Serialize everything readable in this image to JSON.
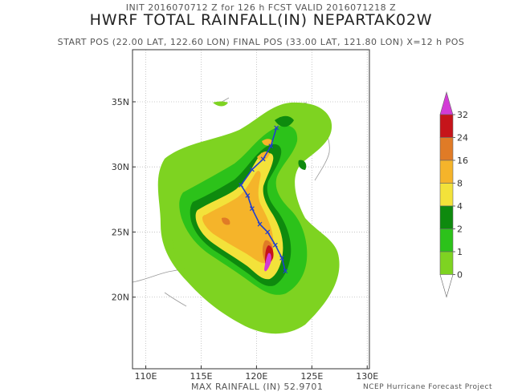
{
  "header": {
    "init_line": "INIT 2016070712 Z for 126 h FCST VALID 2016071218 Z",
    "title": "HWRF TOTAL RAINFALL(IN) NEPARTAK02W",
    "pos_line": "START POS (22.00 LAT, 122.60 LON)   FINAL POS (33.00 LAT, 121.80 LON)  X=12 h POS"
  },
  "map": {
    "lon_range": [
      108.8,
      130.2
    ],
    "lat_range": [
      14.5,
      39.0
    ],
    "lat_ticks": [
      {
        "value": 20,
        "label": "20N"
      },
      {
        "value": 25,
        "label": "25N"
      },
      {
        "value": 30,
        "label": "30N"
      },
      {
        "value": 35,
        "label": "35N"
      }
    ],
    "lon_ticks": [
      {
        "value": 110,
        "label": "110E"
      },
      {
        "value": 115,
        "label": "115E"
      },
      {
        "value": 120,
        "label": "120E"
      },
      {
        "value": 125,
        "label": "125E"
      },
      {
        "value": 130,
        "label": "130E"
      }
    ],
    "track": [
      [
        122.6,
        22.0
      ],
      [
        122.3,
        23.0
      ],
      [
        121.7,
        24.0
      ],
      [
        121.0,
        25.0
      ],
      [
        120.3,
        25.6
      ],
      [
        119.6,
        26.8
      ],
      [
        119.2,
        27.8
      ],
      [
        118.6,
        28.6
      ],
      [
        119.6,
        29.8
      ],
      [
        120.6,
        30.6
      ],
      [
        121.3,
        31.6
      ],
      [
        121.8,
        33.0
      ]
    ]
  },
  "colorbar": {
    "levels": [
      "0",
      "1",
      "2",
      "4",
      "8",
      "16",
      "24",
      "32"
    ],
    "colors": [
      "#7ed321",
      "#2cc21a",
      "#0e8a0e",
      "#f3e23a",
      "#f5b42a",
      "#e07b26",
      "#c6141a",
      "#d33bd6"
    ]
  },
  "footer": {
    "max_rainfall": "MAX RAINFALL (IN) 52.9701",
    "credit": "NCEP Hurricane Forecast Project"
  }
}
